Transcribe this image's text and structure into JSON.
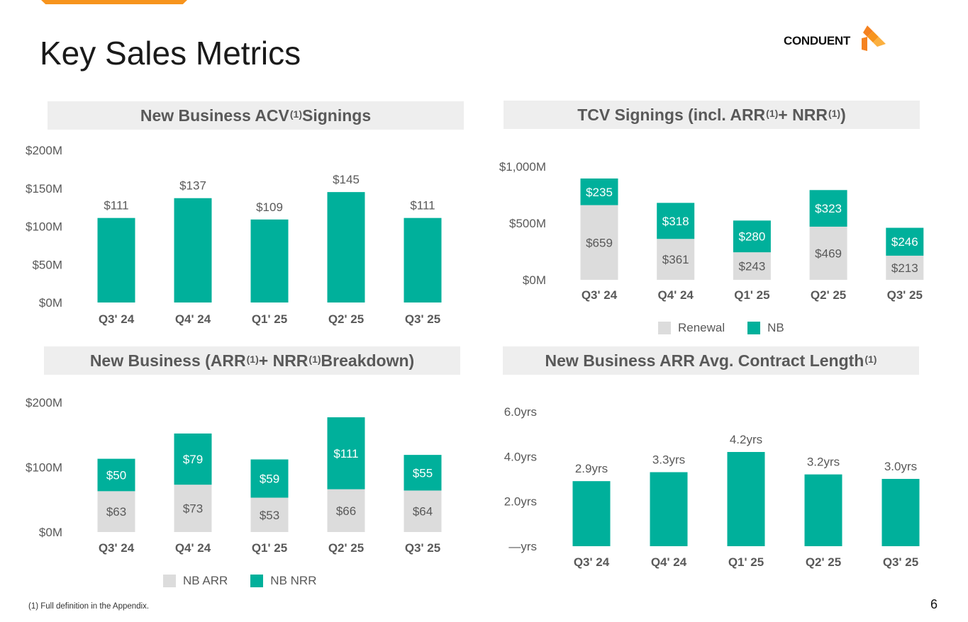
{
  "page": {
    "title": "Key Sales Metrics",
    "logo_text": "CONDUENT",
    "footnote": "(1) Full definition in the Appendix.",
    "page_number": "6"
  },
  "colors": {
    "teal": "#00b09b",
    "gray": "#dcdcdc",
    "accent": "#f7941d",
    "logo_orange": "#f58220"
  },
  "panels": [
    {
      "title": "New Business ACV",
      "sup1": "(1)",
      "title_after": " Signings"
    },
    {
      "title": "TCV Signings (incl. ARR",
      "sup1": "(1)",
      "mid": " + NRR",
      "sup2": "(1)",
      "title_after": ")"
    },
    {
      "title": "New Business (ARR",
      "sup1": "(1)",
      "mid": " + NRR",
      "sup2": "(1)",
      "title_after": " Breakdown)"
    },
    {
      "title": "New Business ARR Avg. Contract Length",
      "sup1": "(1)"
    }
  ],
  "chart_data": [
    {
      "type": "bar",
      "title": "New Business ACV(1) Signings",
      "categories": [
        "Q3' 24",
        "Q4' 24",
        "Q1' 25",
        "Q2' 25",
        "Q3' 25"
      ],
      "values": [
        111,
        137,
        109,
        145,
        111
      ],
      "data_labels": [
        "$111",
        "$137",
        "$109",
        "$145",
        "$111"
      ],
      "ylim": [
        0,
        200
      ],
      "yticks": [
        0,
        50,
        100,
        150,
        200
      ],
      "ytick_labels": [
        "$0M",
        "$50M",
        "$100M",
        "$150M",
        "$200M"
      ],
      "color": "#00b09b"
    },
    {
      "type": "bar",
      "stacked": true,
      "title": "TCV Signings (incl. ARR(1) + NRR(1))",
      "categories": [
        "Q3' 24",
        "Q4' 24",
        "Q1' 25",
        "Q2' 25",
        "Q3' 25"
      ],
      "series": [
        {
          "name": "Renewal",
          "values": [
            659,
            361,
            243,
            469,
            213
          ],
          "labels": [
            "$659",
            "$361",
            "$243",
            "$469",
            "$213"
          ],
          "color": "#dcdcdc"
        },
        {
          "name": "NB",
          "values": [
            235,
            318,
            280,
            323,
            246
          ],
          "labels": [
            "$235",
            "$318",
            "$280",
            "$323",
            "$246"
          ],
          "color": "#00b09b"
        }
      ],
      "ylim": [
        0,
        1000
      ],
      "yticks": [
        0,
        500,
        1000
      ],
      "ytick_labels": [
        "$0M",
        "$500M",
        "$1,000M"
      ],
      "legend": [
        "Renewal",
        "NB"
      ]
    },
    {
      "type": "bar",
      "stacked": true,
      "title": "New Business (ARR(1) + NRR(1) Breakdown)",
      "categories": [
        "Q3' 24",
        "Q4' 24",
        "Q1' 25",
        "Q2' 25",
        "Q3' 25"
      ],
      "series": [
        {
          "name": "NB ARR",
          "values": [
            63,
            73,
            53,
            66,
            64
          ],
          "labels": [
            "$63",
            "$73",
            "$53",
            "$66",
            "$64"
          ],
          "color": "#dcdcdc"
        },
        {
          "name": "NB NRR",
          "values": [
            50,
            79,
            59,
            111,
            55
          ],
          "labels": [
            "$50",
            "$79",
            "$59",
            "$111",
            "$55"
          ],
          "color": "#00b09b"
        }
      ],
      "ylim": [
        0,
        200
      ],
      "yticks": [
        0,
        100,
        200
      ],
      "ytick_labels": [
        "$0M",
        "$100M",
        "$200M"
      ],
      "legend": [
        "NB ARR",
        "NB NRR"
      ]
    },
    {
      "type": "bar",
      "title": "New Business ARR Avg. Contract Length(1)",
      "categories": [
        "Q3' 24",
        "Q4' 24",
        "Q1' 25",
        "Q2' 25",
        "Q3' 25"
      ],
      "values": [
        2.9,
        3.3,
        4.2,
        3.2,
        3.0
      ],
      "data_labels": [
        "2.9yrs",
        "3.3yrs",
        "4.2yrs",
        "3.2yrs",
        "3.0yrs"
      ],
      "ylim": [
        0,
        6
      ],
      "yticks": [
        0,
        2,
        4,
        6
      ],
      "ytick_labels": [
        "—yrs",
        "2.0yrs",
        "4.0yrs",
        "6.0yrs"
      ],
      "color": "#00b09b"
    }
  ]
}
